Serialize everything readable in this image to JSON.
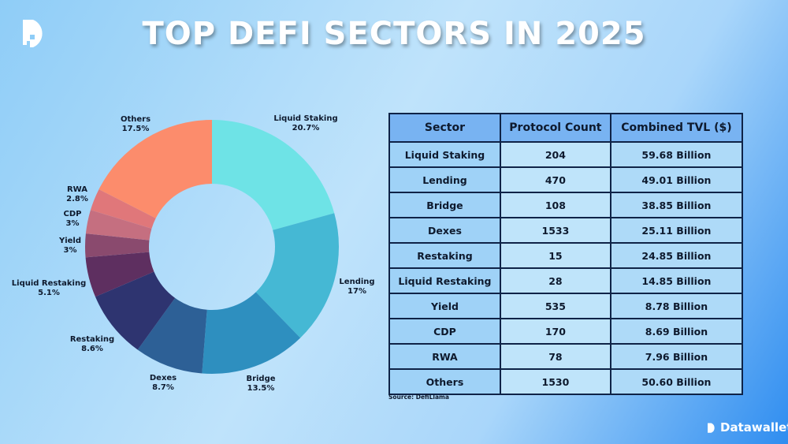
{
  "title": "TOP DEFI SECTORS IN 2025",
  "brand": "Datawallet",
  "source": "Source: DefiLlama",
  "chart_data": {
    "type": "pie",
    "donut": true,
    "categories": [
      "Liquid Staking",
      "Lending",
      "Bridge",
      "Dexes",
      "Restaking",
      "Liquid Restaking",
      "Yield",
      "CDP",
      "RWA",
      "Others"
    ],
    "values": [
      20.7,
      17,
      13.5,
      8.7,
      8.6,
      5.1,
      3,
      3,
      2.8,
      17.5
    ],
    "labels": [
      "20.7%",
      "17%",
      "13.5%",
      "8.7%",
      "8.6%",
      "5.1%",
      "3%",
      "3%",
      "2.8%",
      "17.5%"
    ],
    "colors": [
      "#6ee3e6",
      "#45b8d4",
      "#2e8fbf",
      "#2d6096",
      "#2e3470",
      "#5e2f60",
      "#8a4a6e",
      "#c56f80",
      "#e0777a",
      "#fc8c6c"
    ],
    "legend": "none"
  },
  "table": {
    "headers": [
      "Sector",
      "Protocol Count",
      "Combined TVL ($)"
    ],
    "rows": [
      [
        "Liquid Staking",
        "204",
        "59.68 Billion"
      ],
      [
        "Lending",
        "470",
        "49.01 Billion"
      ],
      [
        "Bridge",
        "108",
        "38.85 Billion"
      ],
      [
        "Dexes",
        "1533",
        "25.11 Billion"
      ],
      [
        "Restaking",
        "15",
        "24.85 Billion"
      ],
      [
        "Liquid Restaking",
        "28",
        "14.85 Billion"
      ],
      [
        "Yield",
        "535",
        "8.78 Billion"
      ],
      [
        "CDP",
        "170",
        "8.69 Billion"
      ],
      [
        "RWA",
        "78",
        "7.96 Billion"
      ],
      [
        "Others",
        "1530",
        "50.60 Billion"
      ]
    ]
  }
}
